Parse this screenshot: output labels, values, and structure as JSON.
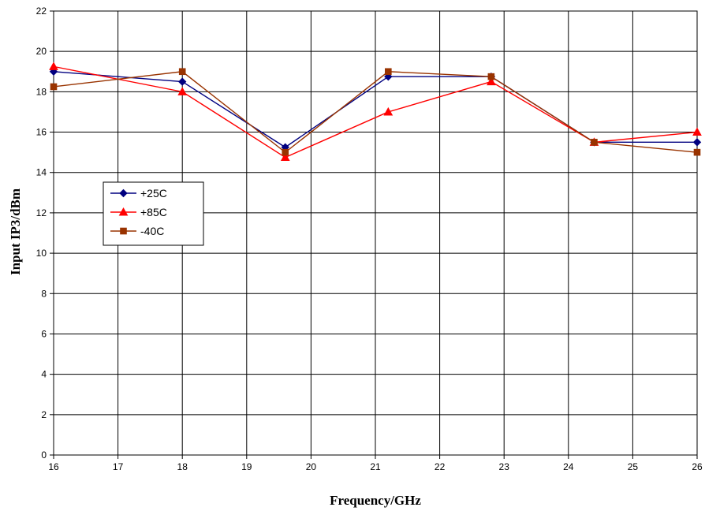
{
  "chart_data": {
    "type": "line",
    "xlabel": "Frequency/GHz",
    "ylabel": "Input IP3/dBm",
    "xlim": [
      16,
      26
    ],
    "ylim": [
      0,
      22
    ],
    "xticks": [
      "16",
      "17",
      "18",
      "19",
      "20",
      "21",
      "22",
      "23",
      "24",
      "25",
      "26"
    ],
    "yticks": [
      "0",
      "2",
      "4",
      "6",
      "8",
      "10",
      "12",
      "14",
      "16",
      "18",
      "20",
      "22"
    ],
    "grid": true,
    "legend_position": "center-left",
    "series": [
      {
        "name": "+25C",
        "color": "#000080",
        "marker": "diamond",
        "x": [
          16,
          18,
          19.6,
          21.2,
          22.8,
          24.4,
          26
        ],
        "y": [
          19.0,
          18.5,
          15.25,
          18.75,
          18.75,
          15.5,
          15.5
        ]
      },
      {
        "name": "+85C",
        "color": "#ff0000",
        "marker": "triangle",
        "x": [
          16,
          18,
          19.6,
          21.2,
          22.8,
          24.4,
          26
        ],
        "y": [
          19.25,
          18.0,
          14.75,
          17.0,
          18.5,
          15.5,
          16.0
        ]
      },
      {
        "name": "-40C",
        "color": "#993300",
        "marker": "square",
        "x": [
          16,
          18,
          19.6,
          21.2,
          22.8,
          24.4,
          26
        ],
        "y": [
          18.25,
          19.0,
          15.0,
          19.0,
          18.75,
          15.5,
          15.0
        ]
      }
    ]
  }
}
